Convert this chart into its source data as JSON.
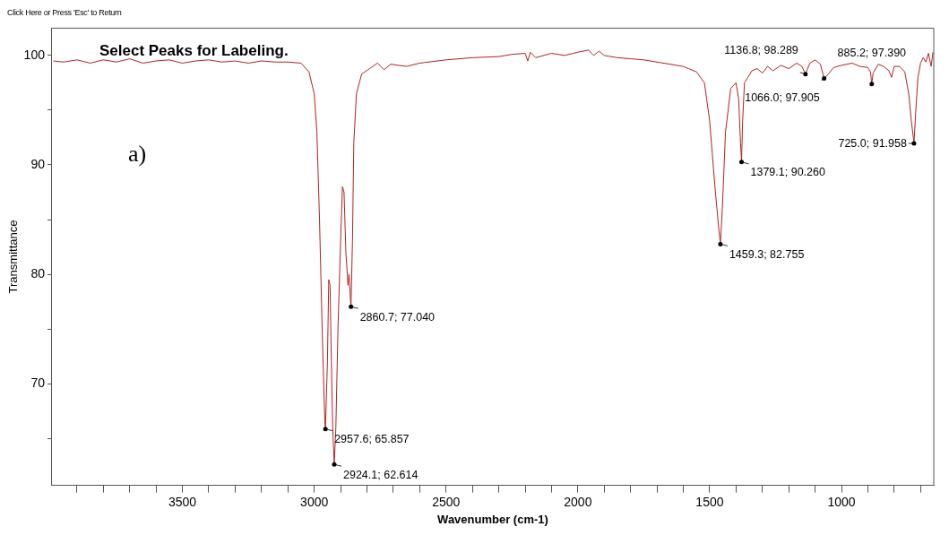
{
  "chart_data": {
    "type": "line",
    "title": "Select Peaks for Labeling.",
    "xlabel": "Wavenumber (cm-1)",
    "ylabel": "Transmittance",
    "xlim": [
      3995,
      650
    ],
    "ylim": [
      60.7,
      102.5
    ],
    "xticks": [
      {
        "value": 3900,
        "label": null
      },
      {
        "value": 3800,
        "label": null
      },
      {
        "value": 3700,
        "label": null
      },
      {
        "value": 3600,
        "label": null
      },
      3500,
      {
        "value": 3400,
        "label": null
      },
      {
        "value": 3300,
        "label": null
      },
      {
        "value": 3200,
        "label": null
      },
      {
        "value": 3100,
        "label": null
      },
      3000,
      {
        "value": 2900,
        "label": null
      },
      {
        "value": 2800,
        "label": null
      },
      {
        "value": 2700,
        "label": null
      },
      {
        "value": 2600,
        "label": null
      },
      2500,
      {
        "value": 2400,
        "label": null
      },
      {
        "value": 2300,
        "label": null
      },
      {
        "value": 2200,
        "label": null
      },
      {
        "value": 2100,
        "label": null
      },
      2000,
      {
        "value": 1900,
        "label": null
      },
      {
        "value": 1800,
        "label": null
      },
      {
        "value": 1700,
        "label": null
      },
      {
        "value": 1600,
        "label": null
      },
      1500,
      {
        "value": 1400,
        "label": null
      },
      {
        "value": 1300,
        "label": null
      },
      {
        "value": 1200,
        "label": null
      },
      {
        "value": 1100,
        "label": null
      },
      1000,
      {
        "value": 900,
        "label": null
      },
      {
        "value": 800,
        "label": null
      },
      {
        "value": 700,
        "label": null
      }
    ],
    "yticks": [
      {
        "value": 65,
        "label": null
      },
      70,
      {
        "value": 75,
        "label": null
      },
      80,
      {
        "value": 85,
        "label": null
      },
      90,
      {
        "value": 95,
        "label": null
      },
      100
    ],
    "grid": false,
    "legend": false,
    "marker": "none",
    "line_style": "solid",
    "series": [
      {
        "color": "#b22222",
        "x": [
          3990,
          3950,
          3900,
          3850,
          3800,
          3750,
          3700,
          3650,
          3600,
          3550,
          3500,
          3450,
          3400,
          3350,
          3300,
          3250,
          3200,
          3150,
          3100,
          3050,
          3020,
          3000,
          2990,
          2980,
          2970,
          2960,
          2957.6,
          2950,
          2945,
          2940,
          2935,
          2930,
          2924.1,
          2918,
          2910,
          2900,
          2893,
          2887,
          2880,
          2872,
          2868,
          2860.7,
          2855,
          2850,
          2840,
          2820,
          2790,
          2760,
          2735,
          2710,
          2650,
          2600,
          2500,
          2400,
          2300,
          2250,
          2200,
          2190,
          2180,
          2160,
          2100,
          2050,
          2000,
          1960,
          1940,
          1920,
          1900,
          1850,
          1800,
          1750,
          1700,
          1650,
          1600,
          1580,
          1550,
          1520,
          1500,
          1480,
          1465,
          1459.3,
          1452,
          1440,
          1420,
          1400,
          1390,
          1383,
          1379.1,
          1375,
          1368,
          1355,
          1340,
          1320,
          1300,
          1280,
          1260,
          1230,
          1200,
          1170,
          1150,
          1136.8,
          1120,
          1100,
          1080,
          1066,
          1050,
          1030,
          1000,
          960,
          930,
          900,
          890,
          885.2,
          880,
          860,
          840,
          820,
          810,
          800,
          780,
          760,
          745,
          735,
          725,
          718,
          710,
          700,
          690,
          680,
          670,
          660,
          653
        ],
        "values": [
          99.5,
          99.4,
          99.6,
          99.3,
          99.6,
          99.4,
          99.7,
          99.3,
          99.5,
          99.6,
          99.3,
          99.5,
          99.6,
          99.4,
          99.5,
          99.3,
          99.5,
          99.4,
          99.4,
          99.3,
          98.5,
          96.5,
          93,
          85,
          75,
          66.5,
          65.9,
          72,
          79.5,
          79,
          72,
          66,
          62.6,
          66,
          75,
          83,
          88,
          87.5,
          82,
          79,
          80,
          77.0,
          83,
          92,
          96.5,
          98.3,
          98.8,
          99.3,
          98.7,
          99.2,
          99.0,
          99.3,
          99.6,
          99.8,
          99.9,
          100.1,
          100.2,
          99.5,
          100.3,
          99.8,
          100.2,
          100.0,
          100.3,
          100.5,
          100.0,
          100.4,
          100.0,
          99.8,
          99.7,
          99.6,
          99.4,
          99.2,
          99.0,
          98.8,
          98.5,
          97.5,
          94,
          88,
          84,
          82.8,
          86,
          93,
          97,
          97.5,
          96,
          92,
          90.3,
          94,
          97.5,
          98,
          98.6,
          98.8,
          98.4,
          99.0,
          98.6,
          99.1,
          98.8,
          99.3,
          99.0,
          98.3,
          99.3,
          99.6,
          99.2,
          97.9,
          98.3,
          98.9,
          99.1,
          99.3,
          99.0,
          98.9,
          98.5,
          97.4,
          98.4,
          99.2,
          99.0,
          98.6,
          98.0,
          99.0,
          99.0,
          98.5,
          96.5,
          94,
          92.0,
          95,
          98,
          99.3,
          99.8,
          99.4,
          100.2,
          99.0,
          100.3
        ]
      }
    ],
    "annotations": [
      "Click Here or Press 'Esc' to Return",
      "a)",
      {
        "text": "2957.6; 65.857",
        "x": 2957.6,
        "y": 65.857
      },
      {
        "text": "2924.1; 62.614",
        "x": 2924.1,
        "y": 62.614
      },
      {
        "text": "2860.7; 77.040",
        "x": 2860.7,
        "y": 77.04
      },
      {
        "text": "1459.3; 82.755",
        "x": 1459.3,
        "y": 82.755
      },
      {
        "text": "1379.1; 90.260",
        "x": 1379.1,
        "y": 90.26
      },
      {
        "text": "1136.8; 98.289",
        "x": 1136.8,
        "y": 98.289
      },
      {
        "text": "1066.0; 97.905",
        "x": 1066.0,
        "y": 97.905
      },
      {
        "text": "885.2; 97.390",
        "x": 885.2,
        "y": 97.39
      },
      {
        "text": "725.0; 91.958",
        "x": 725.0,
        "y": 91.958
      }
    ]
  }
}
